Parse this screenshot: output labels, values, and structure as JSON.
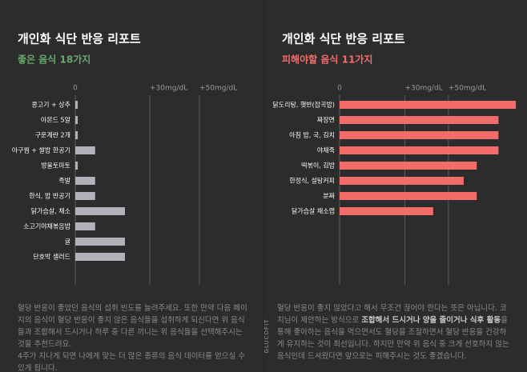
{
  "brand": "GLUCOFIT",
  "chart_data": [
    {
      "type": "bar",
      "title": "개인화 식단 반응 리포트",
      "subtitle": "좋은 음식 18가지",
      "categories": [
        "콩고기 + 상추",
        "아몬드 5알",
        "구운계란 2개",
        "아구찜 + 쌀밥 한공기",
        "방울토마토",
        "족발",
        "한식, 밥 반공기",
        "닭가슴살, 채소",
        "소고기야채볶음밥",
        "귤",
        "단호박 샐러드"
      ],
      "values": [
        1,
        1,
        1,
        8,
        1,
        8,
        8,
        20,
        8,
        20,
        20
      ],
      "color": "#b3b0ba",
      "subtitle_color": "#67a86b",
      "xlim": [
        0,
        80
      ],
      "xticks": [
        0,
        {
          "value": 30,
          "label": "+30mg/dL"
        },
        {
          "value": 50,
          "label": "+50mg/dL"
        }
      ],
      "grid": true,
      "caption": "혈당 반응이 좋았던 음식의 섭취 빈도를 늘려주세요. 또한 만약 다음 페이지의 음식이 혈당 반응이 좋지 않은 음식들을 섭취하게 되신다면 위 음식들과 조합해서 드시거나 하루 중 다른 끼니는 위 음식들을 선택해주시는 것을 추천드려요.",
      "caption_2": "4주가 지나게 되면 나에게 맞는 더 많은 종류의 음식 데이터를 얻으실 수 있게 됩니다."
    },
    {
      "type": "bar",
      "title": "개인화 식단 반응 리포트",
      "subtitle": "피해야할 음식 11가지",
      "categories": [
        "닭도리탕, 햇반(잡곡밥)",
        "짜장면",
        "아침 밥, 국, 김치",
        "야채죽",
        "떡볶이, 김밥",
        "한정식, 설탕커피",
        "분짜",
        "닭가슴살 채소랩"
      ],
      "values": [
        81,
        73,
        73,
        73,
        63,
        57,
        63,
        43
      ],
      "color": "#f26d6a",
      "subtitle_color": "#f26d6a",
      "xlim": [
        0,
        85
      ],
      "xticks": [
        0,
        {
          "value": 30,
          "label": "+30mg/dL"
        },
        {
          "value": 50,
          "label": "+50mg/dL"
        }
      ],
      "grid": true,
      "caption": "혈당 반응이 좋지 않았다고 해서 무조건 끊어야 한다는 뜻은 아닙니다. 코치님이 제안하는 방식으로 ",
      "caption_bold": "조합해서 드시거나 양을 줄이거나 식후 활동",
      "caption_2": "을 통해 좋아하는 음식을 먹으면서도 혈당을 조절하면서 혈당 반응을 건강하게 유지하는 것이 최선입니다. 하지만 만약 위 음식 중 크게 선호하지 않는 음식인데 드셔왔다면 앞으로는 피해주시는 것도 좋겠습니다."
    }
  ]
}
